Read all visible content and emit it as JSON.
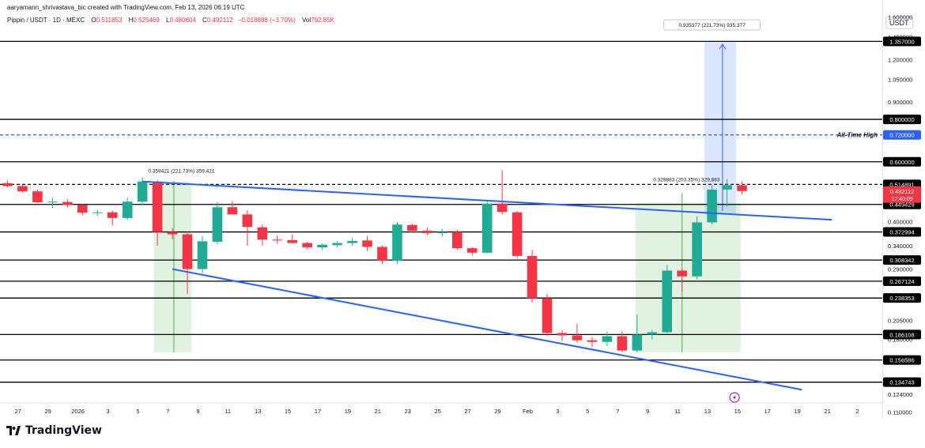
{
  "header": {
    "attribution": "aaryamann_shrivastava_bic created with TradingView.com, Feb 13, 2026 06:19 UTC",
    "symbol": "Pippin / USDT · 1D · MEXC",
    "o_label": "O",
    "o_value": "0.511853",
    "h_label": "H",
    "h_value": "0.525469",
    "l_label": "L",
    "l_value": "0.480604",
    "c_label": "C",
    "c_value": "0.492112",
    "change": "−0.018888 (−3.70%)",
    "vol_label": "Vol",
    "vol_value": "792.85K"
  },
  "currency": "USDT",
  "brand": "TradingView",
  "colors": {
    "up": "#22ab94",
    "down": "#f23645",
    "trendline": "#2962ff",
    "ath": "#2962ff",
    "target_box": "#2962ff",
    "measure_box": "#4caf50"
  },
  "chart_data": {
    "type": "candlestick",
    "symbol": "Pippin / USDT",
    "timeframe": "1D",
    "exchange": "MEXC",
    "y_scale": "log",
    "y_tick_labels": [
      "1.600000",
      "1.400000",
      "1.200000",
      "1.050000",
      "0.900000",
      "0.400000",
      "0.340000",
      "0.290000",
      "0.205000",
      "0.180000",
      "0.124000",
      "0.110000"
    ],
    "x_tick_labels": [
      "27",
      "29",
      "2026",
      "3",
      "5",
      "7",
      "9",
      "11",
      "13",
      "15",
      "17",
      "19",
      "21",
      "23",
      "25",
      "27",
      "29",
      "Feb",
      "3",
      "5",
      "7",
      "9",
      "11",
      "13",
      "15",
      "17",
      "19",
      "21",
      "2"
    ],
    "candles": [
      {
        "o": 0.519,
        "h": 0.528,
        "l": 0.505,
        "c": 0.509
      },
      {
        "o": 0.509,
        "h": 0.512,
        "l": 0.487,
        "c": 0.491
      },
      {
        "o": 0.491,
        "h": 0.497,
        "l": 0.454,
        "c": 0.456
      },
      {
        "o": 0.456,
        "h": 0.47,
        "l": 0.438,
        "c": 0.458
      },
      {
        "o": 0.457,
        "h": 0.466,
        "l": 0.44,
        "c": 0.448
      },
      {
        "o": 0.448,
        "h": 0.45,
        "l": 0.417,
        "c": 0.425
      },
      {
        "o": 0.425,
        "h": 0.433,
        "l": 0.416,
        "c": 0.426
      },
      {
        "o": 0.426,
        "h": 0.431,
        "l": 0.39,
        "c": 0.41
      },
      {
        "o": 0.41,
        "h": 0.47,
        "l": 0.405,
        "c": 0.458
      },
      {
        "o": 0.458,
        "h": 0.54,
        "l": 0.447,
        "c": 0.525
      },
      {
        "o": 0.525,
        "h": 0.53,
        "l": 0.34,
        "c": 0.373
      },
      {
        "o": 0.373,
        "h": 0.383,
        "l": 0.355,
        "c": 0.367
      },
      {
        "o": 0.367,
        "h": 0.375,
        "l": 0.245,
        "c": 0.29
      },
      {
        "o": 0.29,
        "h": 0.362,
        "l": 0.282,
        "c": 0.35
      },
      {
        "o": 0.349,
        "h": 0.456,
        "l": 0.343,
        "c": 0.441
      },
      {
        "o": 0.441,
        "h": 0.46,
        "l": 0.42,
        "c": 0.42
      },
      {
        "o": 0.42,
        "h": 0.432,
        "l": 0.34,
        "c": 0.386
      },
      {
        "o": 0.385,
        "h": 0.392,
        "l": 0.34,
        "c": 0.354
      },
      {
        "o": 0.354,
        "h": 0.364,
        "l": 0.344,
        "c": 0.352
      },
      {
        "o": 0.353,
        "h": 0.367,
        "l": 0.345,
        "c": 0.346
      },
      {
        "o": 0.346,
        "h": 0.349,
        "l": 0.331,
        "c": 0.336
      },
      {
        "o": 0.336,
        "h": 0.346,
        "l": 0.33,
        "c": 0.342
      },
      {
        "o": 0.341,
        "h": 0.351,
        "l": 0.336,
        "c": 0.346
      },
      {
        "o": 0.346,
        "h": 0.358,
        "l": 0.34,
        "c": 0.351
      },
      {
        "o": 0.352,
        "h": 0.363,
        "l": 0.328,
        "c": 0.337
      },
      {
        "o": 0.337,
        "h": 0.34,
        "l": 0.3,
        "c": 0.307
      },
      {
        "o": 0.307,
        "h": 0.399,
        "l": 0.3,
        "c": 0.392
      },
      {
        "o": 0.391,
        "h": 0.394,
        "l": 0.371,
        "c": 0.376
      },
      {
        "o": 0.376,
        "h": 0.385,
        "l": 0.364,
        "c": 0.37
      },
      {
        "o": 0.37,
        "h": 0.38,
        "l": 0.361,
        "c": 0.373
      },
      {
        "o": 0.373,
        "h": 0.378,
        "l": 0.33,
        "c": 0.334
      },
      {
        "o": 0.334,
        "h": 0.336,
        "l": 0.318,
        "c": 0.324
      },
      {
        "o": 0.324,
        "h": 0.458,
        "l": 0.323,
        "c": 0.452
      },
      {
        "o": 0.452,
        "h": 0.567,
        "l": 0.42,
        "c": 0.427
      },
      {
        "o": 0.426,
        "h": 0.43,
        "l": 0.312,
        "c": 0.317
      },
      {
        "o": 0.317,
        "h": 0.33,
        "l": 0.231,
        "c": 0.238
      },
      {
        "o": 0.238,
        "h": 0.245,
        "l": 0.184,
        "c": 0.188
      },
      {
        "o": 0.188,
        "h": 0.192,
        "l": 0.178,
        "c": 0.185
      },
      {
        "o": 0.185,
        "h": 0.2,
        "l": 0.176,
        "c": 0.179
      },
      {
        "o": 0.179,
        "h": 0.183,
        "l": 0.171,
        "c": 0.177
      },
      {
        "o": 0.177,
        "h": 0.19,
        "l": 0.172,
        "c": 0.184
      },
      {
        "o": 0.184,
        "h": 0.19,
        "l": 0.165,
        "c": 0.167
      },
      {
        "o": 0.167,
        "h": 0.213,
        "l": 0.165,
        "c": 0.186
      },
      {
        "o": 0.186,
        "h": 0.192,
        "l": 0.18,
        "c": 0.189
      },
      {
        "o": 0.189,
        "h": 0.298,
        "l": 0.188,
        "c": 0.287
      },
      {
        "o": 0.287,
        "h": 0.291,
        "l": 0.249,
        "c": 0.276
      },
      {
        "o": 0.276,
        "h": 0.415,
        "l": 0.271,
        "c": 0.398
      },
      {
        "o": 0.398,
        "h": 0.512,
        "l": 0.393,
        "c": 0.497
      },
      {
        "o": 0.497,
        "h": 0.534,
        "l": 0.443,
        "c": 0.512
      },
      {
        "o": 0.512,
        "h": 0.525,
        "l": 0.481,
        "c": 0.492
      }
    ],
    "horizontal_levels": [
      {
        "value": 1.357,
        "label": "1.357000"
      },
      {
        "value": 0.8,
        "label": "0.800000"
      },
      {
        "value": 0.6,
        "label": "0.600000"
      },
      {
        "value": 0.514891,
        "label": "0.514891",
        "dashed": true
      },
      {
        "value": 0.449429,
        "label": "0.449429"
      },
      {
        "value": 0.372994,
        "label": "0.372994"
      },
      {
        "value": 0.308342,
        "label": "0.308342"
      },
      {
        "value": 0.267124,
        "label": "0.267124"
      },
      {
        "value": 0.238353,
        "label": "0.238353"
      },
      {
        "value": 0.186108,
        "label": "0.186108"
      },
      {
        "value": 0.156586,
        "label": "0.156586"
      },
      {
        "value": 0.134743,
        "label": "0.134743"
      }
    ],
    "ath": {
      "value": 0.72,
      "label": "0.720000",
      "text": "All-Time High"
    },
    "current_price": {
      "value": 0.492112,
      "label": "0.492112",
      "countdown": "17:40:09"
    },
    "measure_annotations": [
      {
        "text": "0.359421 (221.73%) 359,421"
      },
      {
        "text": "0.329883 (203.35%) 329,883"
      },
      {
        "text": "0.935377 (221.73%) 935,377"
      }
    ],
    "trendlines": [
      {
        "from_index": 9,
        "from_value": 0.525,
        "to_index": 55,
        "to_value": 0.405
      },
      {
        "from_index": 11,
        "from_value": 0.29,
        "to_index": 53,
        "to_value": 0.128
      }
    ]
  }
}
